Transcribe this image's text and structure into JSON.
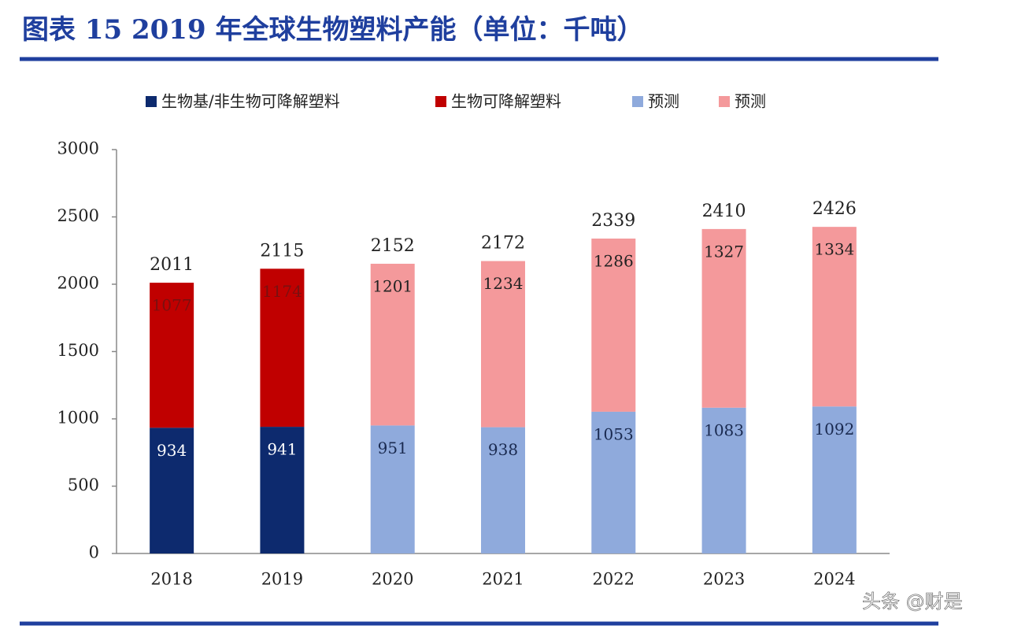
{
  "chart_data": {
    "type": "stacked-bar",
    "title": "图表 15  2019 年全球生物塑料产能（单位：千吨）",
    "categories": [
      "2018",
      "2019",
      "2020",
      "2021",
      "2022",
      "2023",
      "2024"
    ],
    "series": [
      {
        "name": "生物基/非生物可降解塑料",
        "color": "#0d2a6e",
        "label_color": "#ffffff",
        "values": [
          934,
          941,
          null,
          null,
          null,
          null,
          null
        ]
      },
      {
        "name": "生物可降解塑料",
        "color": "#c00000",
        "label_color": "#7a1010",
        "values": [
          1077,
          1174,
          null,
          null,
          null,
          null,
          null
        ]
      },
      {
        "name": "预测",
        "color": "#8faadc",
        "label_color": "#1a2a50",
        "values": [
          null,
          null,
          951,
          938,
          1053,
          1083,
          1092
        ]
      },
      {
        "name": "预测",
        "color": "#f4999b",
        "label_color": "#222222",
        "values": [
          null,
          null,
          1201,
          1234,
          1286,
          1327,
          1334
        ]
      }
    ],
    "totals": [
      2011,
      2115,
      2152,
      2172,
      2339,
      2410,
      2426
    ],
    "ylim": [
      0,
      3000
    ],
    "yticks": [
      0,
      500,
      1000,
      1500,
      2000,
      2500,
      3000
    ],
    "grid": false
  },
  "watermark": "头条 @财是"
}
